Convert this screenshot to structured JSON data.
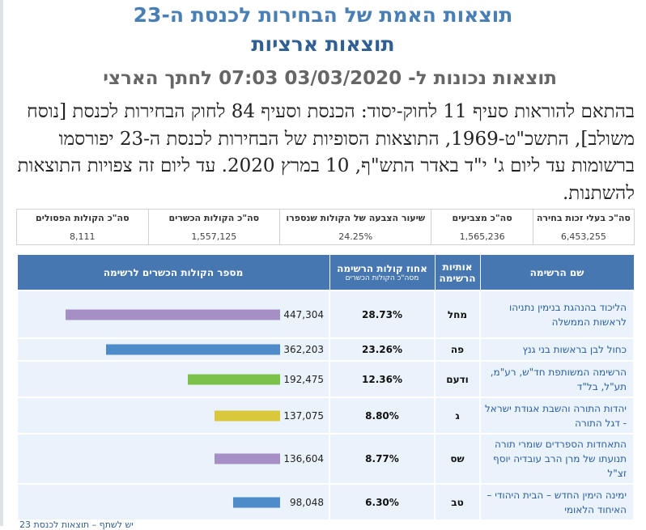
{
  "header": {
    "title": "תוצאות האמת של הבחירות לכנסת ה-23",
    "subtitle": "תוצאות ארציות",
    "updated": "תוצאות נכונות ל- 03/03/2020 07:03 לחתך הארצי"
  },
  "notice": "בהתאם להוראות סעיף 11 לחוק-יסוד: הכנסת וסעיף 84 לחוק הבחירות לכנסת [נוסח משולב], התשכ\"ט-1969, התוצאות הסופיות של הבחירות לכנסת ה-23 יפורסמו ברשומות עד ליום ג' י\"ד באדר התש\"ף, 10 במרץ 2020. עד ליום זה צפויות התוצאות להשתנות.",
  "stats": [
    {
      "label": "סה\"כ בעלי זכות בחירה",
      "value": "6,453,255"
    },
    {
      "label": "סה\"כ מצביעים",
      "value": "1,565,236"
    },
    {
      "label": "שיעור הצבעה של הקולות שנספרו",
      "value": "24.25%"
    },
    {
      "label": "סה\"כ הקולות הכשרים",
      "value": "1,557,125"
    },
    {
      "label": "סה\"כ הקולות הפסולים",
      "value": "8,111"
    }
  ],
  "table": {
    "col_name": "שם הרשימה",
    "col_letters": "אותיות הרשימה",
    "col_pct": "אחוז קולות הרשימה",
    "col_pct_sub": "מסה\"כ הקולות הכשרים",
    "col_votes": "מספר הקולות הכשרים לרשימה"
  },
  "rows": [
    {
      "name": "הליכוד בהנהגת בנימין נתניהו לראשות הממשלה",
      "letters": "מחל",
      "pct": "28.73%",
      "votes": "447,304",
      "votes_num": 447304,
      "color": "#a68fc5"
    },
    {
      "name": "כחול לבן בראשות בני גנץ",
      "letters": "פה",
      "pct": "23.26%",
      "votes": "362,203",
      "votes_num": 362203,
      "color": "#4d8bcb"
    },
    {
      "name": "הרשימה המשותפת חד\"ש, רע\"מ, תע\"ל, בל\"ד",
      "letters": "ודעם",
      "pct": "12.36%",
      "votes": "192,475",
      "votes_num": 192475,
      "color": "#7cc24a"
    },
    {
      "name": "יהדות התורה והשבת אגודת ישראל - דגל התורה",
      "letters": "ג",
      "pct": "8.80%",
      "votes": "137,075",
      "votes_num": 137075,
      "color": "#d9c83c"
    },
    {
      "name": "התאחדות הספרדים שומרי תורה תנועתו של מרן הרב עובדיה יוסף זצ\"ל",
      "letters": "שס",
      "pct": "8.77%",
      "votes": "136,604",
      "votes_num": 136604,
      "color": "#a68fc5"
    },
    {
      "name": "ימינה הימין החדש – הבית היהודי – האיחוד הלאומי",
      "letters": "טב",
      "pct": "6.30%",
      "votes": "98,048",
      "votes_num": 98048,
      "color": "#4d8bcb"
    }
  ],
  "max_votes": 447304,
  "footer": {
    "link": "יש לשתף – תוצאות לכנסת 23"
  }
}
